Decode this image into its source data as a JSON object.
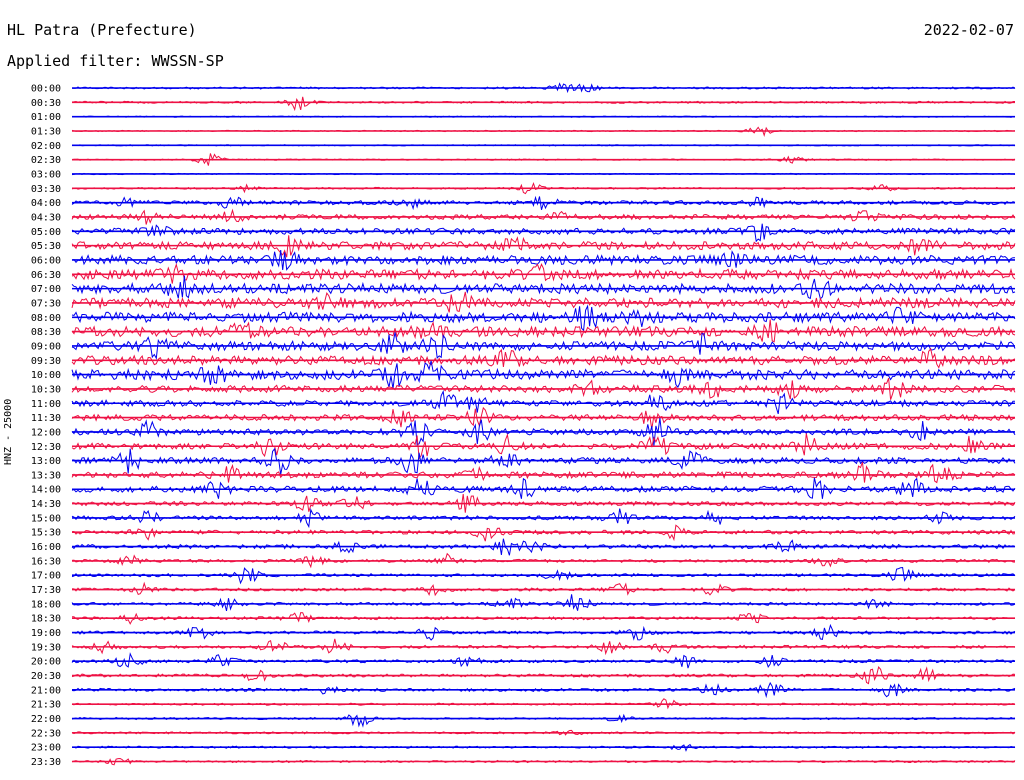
{
  "header": {
    "station": "HL Patra (Prefecture)",
    "date": "2022-02-07",
    "filter": "Applied filter: WWSSN-SP"
  },
  "chart_data": {
    "type": "line",
    "title": "HL Patra (Prefecture)",
    "ylabel": "HNZ - 25000",
    "categories": [
      "00:00",
      "00:30",
      "01:00",
      "01:30",
      "02:00",
      "02:30",
      "03:00",
      "03:30",
      "04:00",
      "04:30",
      "05:00",
      "05:30",
      "06:00",
      "06:30",
      "07:00",
      "07:30",
      "08:00",
      "08:30",
      "09:00",
      "09:30",
      "10:00",
      "10:30",
      "11:00",
      "11:30",
      "12:00",
      "12:30",
      "13:00",
      "13:30",
      "14:00",
      "14:30",
      "15:00",
      "15:30",
      "16:00",
      "16:30",
      "17:00",
      "17:30",
      "18:00",
      "18:30",
      "19:00",
      "19:30",
      "20:00",
      "20:30",
      "21:00",
      "21:30",
      "22:00",
      "22:30",
      "23:00",
      "23:30"
    ],
    "colors": [
      "#0000ee",
      "#ee1144"
    ],
    "noise": [
      1,
      1,
      0.6,
      0.6,
      0.6,
      0.7,
      0.6,
      0.9,
      2,
      2.5,
      3,
      4,
      4.5,
      5,
      5,
      5,
      5,
      5,
      4.5,
      4.5,
      5,
      3.5,
      3,
      3,
      3,
      3,
      3,
      3,
      3,
      2,
      2,
      2,
      2,
      1.5,
      1.5,
      1.5,
      1.5,
      1.5,
      1.5,
      1.5,
      1.5,
      1.5,
      1.5,
      1,
      1,
      1,
      1,
      1
    ],
    "events": [
      [
        [
          0.52,
          4
        ],
        [
          0.545,
          5
        ]
      ],
      [
        [
          0.24,
          7
        ]
      ],
      [],
      [
        [
          0.73,
          5
        ]
      ],
      [],
      [
        [
          0.145,
          6
        ],
        [
          0.765,
          3
        ]
      ],
      [],
      [
        [
          0.185,
          3
        ],
        [
          0.485,
          6
        ],
        [
          0.86,
          3
        ]
      ],
      [
        [
          0.06,
          5
        ],
        [
          0.17,
          6
        ],
        [
          0.36,
          4
        ],
        [
          0.5,
          6
        ],
        [
          0.73,
          4
        ]
      ],
      [
        [
          0.085,
          7
        ],
        [
          0.17,
          5
        ],
        [
          0.52,
          4
        ],
        [
          0.84,
          5
        ]
      ],
      [
        [
          0.09,
          6
        ],
        [
          0.73,
          8
        ]
      ],
      [
        [
          0.23,
          8
        ],
        [
          0.47,
          6
        ],
        [
          0.9,
          8
        ]
      ],
      [
        [
          0.225,
          8
        ],
        [
          0.7,
          5
        ]
      ],
      [
        [
          0.11,
          6
        ],
        [
          0.5,
          7
        ]
      ],
      [
        [
          0.115,
          10
        ],
        [
          0.79,
          8
        ]
      ],
      [
        [
          0.27,
          7
        ],
        [
          0.41,
          9
        ]
      ],
      [
        [
          0.545,
          10
        ],
        [
          0.6,
          6
        ],
        [
          0.88,
          6
        ]
      ],
      [
        [
          0.18,
          7
        ],
        [
          0.38,
          8
        ],
        [
          0.74,
          8
        ]
      ],
      [
        [
          0.09,
          8
        ],
        [
          0.34,
          10
        ],
        [
          0.385,
          12
        ],
        [
          0.67,
          8
        ]
      ],
      [
        [
          0.46,
          8
        ],
        [
          0.91,
          9
        ]
      ],
      [
        [
          0.15,
          9
        ],
        [
          0.34,
          10
        ],
        [
          0.38,
          10
        ],
        [
          0.64,
          8
        ]
      ],
      [
        [
          0.55,
          7
        ],
        [
          0.68,
          8
        ],
        [
          0.76,
          9
        ],
        [
          0.87,
          9
        ]
      ],
      [
        [
          0.395,
          10
        ],
        [
          0.43,
          8
        ],
        [
          0.62,
          9
        ],
        [
          0.75,
          9
        ]
      ],
      [
        [
          0.345,
          8
        ],
        [
          0.43,
          12
        ],
        [
          0.615,
          9
        ]
      ],
      [
        [
          0.08,
          9
        ],
        [
          0.365,
          11
        ],
        [
          0.43,
          12
        ],
        [
          0.62,
          12
        ],
        [
          0.9,
          9
        ]
      ],
      [
        [
          0.21,
          9
        ],
        [
          0.37,
          10
        ],
        [
          0.46,
          10
        ],
        [
          0.62,
          12
        ],
        [
          0.78,
          10
        ],
        [
          0.95,
          9
        ]
      ],
      [
        [
          0.06,
          10
        ],
        [
          0.22,
          12
        ],
        [
          0.36,
          12
        ],
        [
          0.46,
          9
        ],
        [
          0.655,
          9
        ]
      ],
      [
        [
          0.165,
          8
        ],
        [
          0.43,
          8
        ],
        [
          0.84,
          10
        ],
        [
          0.92,
          12
        ]
      ],
      [
        [
          0.155,
          9
        ],
        [
          0.37,
          9
        ],
        [
          0.48,
          9
        ],
        [
          0.79,
          9
        ],
        [
          0.89,
          10
        ]
      ],
      [
        [
          0.25,
          7
        ],
        [
          0.3,
          7
        ],
        [
          0.42,
          9
        ]
      ],
      [
        [
          0.08,
          6
        ],
        [
          0.25,
          7
        ],
        [
          0.58,
          9
        ],
        [
          0.68,
          7
        ],
        [
          0.92,
          7
        ]
      ],
      [
        [
          0.08,
          6
        ],
        [
          0.44,
          8
        ],
        [
          0.64,
          6
        ]
      ],
      [
        [
          0.29,
          7
        ],
        [
          0.46,
          8
        ],
        [
          0.49,
          7
        ],
        [
          0.76,
          6
        ]
      ],
      [
        [
          0.06,
          5
        ],
        [
          0.255,
          5
        ],
        [
          0.4,
          6
        ],
        [
          0.8,
          5
        ]
      ],
      [
        [
          0.185,
          9
        ],
        [
          0.515,
          6
        ],
        [
          0.88,
          7
        ]
      ],
      [
        [
          0.075,
          5
        ],
        [
          0.385,
          5
        ],
        [
          0.58,
          6
        ],
        [
          0.68,
          5
        ]
      ],
      [
        [
          0.165,
          6
        ],
        [
          0.465,
          6
        ],
        [
          0.535,
          10
        ],
        [
          0.85,
          5
        ]
      ],
      [
        [
          0.06,
          5
        ],
        [
          0.24,
          5
        ],
        [
          0.72,
          6
        ]
      ],
      [
        [
          0.135,
          6
        ],
        [
          0.38,
          8
        ],
        [
          0.6,
          7
        ],
        [
          0.8,
          7
        ]
      ],
      [
        [
          0.035,
          5
        ],
        [
          0.215,
          8
        ],
        [
          0.28,
          7
        ],
        [
          0.57,
          6
        ],
        [
          0.63,
          5
        ]
      ],
      [
        [
          0.06,
          7
        ],
        [
          0.16,
          6
        ],
        [
          0.42,
          5
        ],
        [
          0.65,
          6
        ],
        [
          0.74,
          6
        ]
      ],
      [
        [
          0.195,
          6
        ],
        [
          0.85,
          9
        ],
        [
          0.905,
          9
        ]
      ],
      [
        [
          0.27,
          3
        ],
        [
          0.68,
          5
        ],
        [
          0.74,
          9
        ],
        [
          0.87,
          7
        ]
      ],
      [
        [
          0.63,
          5
        ]
      ],
      [
        [
          0.305,
          7
        ],
        [
          0.58,
          3
        ]
      ],
      [
        [
          0.53,
          3
        ]
      ],
      [
        [
          0.645,
          4
        ]
      ],
      [
        [
          0.05,
          3
        ]
      ]
    ]
  }
}
